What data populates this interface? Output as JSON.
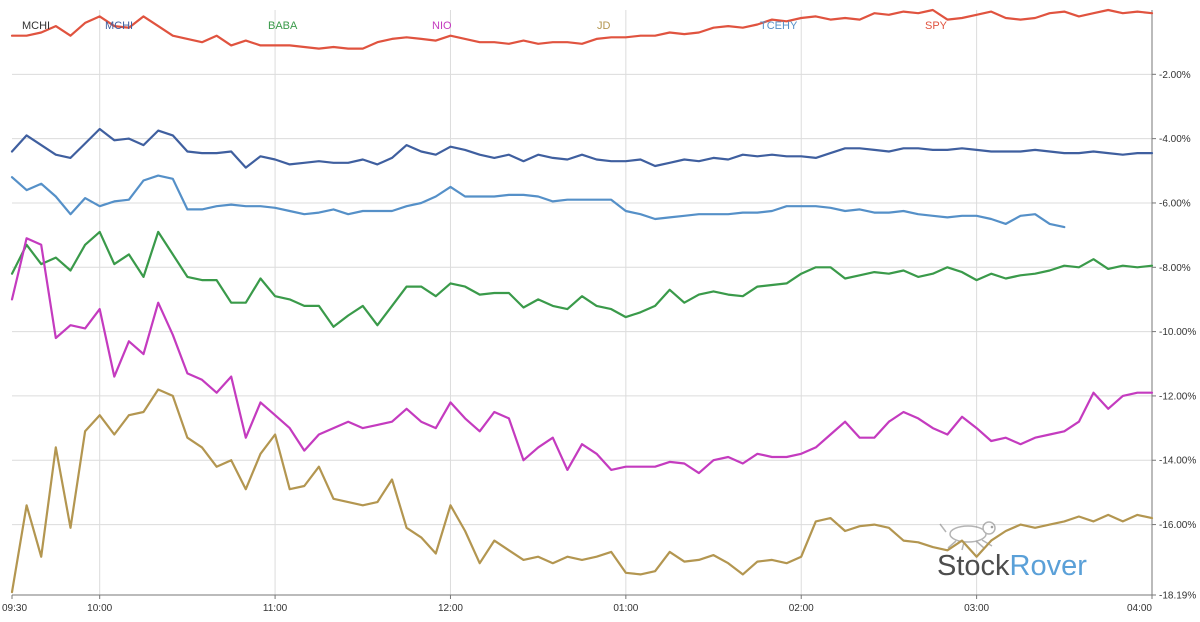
{
  "chart_data": {
    "type": "line",
    "title": "",
    "xlabel": "",
    "ylabel": "",
    "x_tick_labels": [
      "09:30",
      "10:00",
      "11:00",
      "12:00",
      "01:00",
      "02:00",
      "03:00",
      "04:00"
    ],
    "y_tick_labels": [
      "-2.00%",
      "-4.00%",
      "-6.00%",
      "-8.00%",
      "-10.00%",
      "-12.00%",
      "-14.00%",
      "-16.00%",
      "-18.19%"
    ],
    "ylim": [
      -18.19,
      0
    ],
    "x_range_minutes": [
      0,
      390
    ],
    "grid": true,
    "legend_position": "top",
    "watermark": {
      "part1": "Stock",
      "part2": "Rover",
      "color1": "#4d4d4d",
      "color2": "#5aa0d8"
    },
    "series": [
      {
        "name": "SPY",
        "color": "#e0533f",
        "x": [
          0,
          5,
          10,
          15,
          20,
          25,
          30,
          35,
          40,
          45,
          50,
          55,
          60,
          65,
          70,
          75,
          80,
          85,
          90,
          95,
          100,
          105,
          110,
          115,
          120,
          125,
          130,
          135,
          140,
          145,
          150,
          155,
          160,
          165,
          170,
          175,
          180,
          185,
          190,
          195,
          200,
          205,
          210,
          215,
          220,
          225,
          230,
          235,
          240,
          245,
          250,
          255,
          260,
          265,
          270,
          275,
          280,
          285,
          290,
          295,
          300,
          305,
          310,
          315,
          320,
          325,
          330,
          335,
          340,
          345,
          350,
          355,
          360,
          365,
          370,
          375,
          380,
          385,
          390
        ],
        "values": [
          -0.8,
          -0.8,
          -0.7,
          -0.5,
          -0.8,
          -0.4,
          -0.2,
          -0.5,
          -0.55,
          -0.2,
          -0.5,
          -0.8,
          -0.9,
          -1.0,
          -0.8,
          -1.1,
          -0.95,
          -1.1,
          -1.1,
          -1.1,
          -1.15,
          -1.2,
          -1.15,
          -1.2,
          -1.2,
          -1.0,
          -0.9,
          -0.85,
          -0.9,
          -0.95,
          -0.8,
          -0.9,
          -1.0,
          -1.0,
          -1.05,
          -0.95,
          -1.05,
          -1.0,
          -1.0,
          -1.05,
          -0.9,
          -0.85,
          -0.85,
          -0.8,
          -0.8,
          -0.7,
          -0.75,
          -0.7,
          -0.55,
          -0.5,
          -0.55,
          -0.45,
          -0.3,
          -0.35,
          -0.25,
          -0.2,
          -0.3,
          -0.25,
          -0.3,
          -0.1,
          -0.15,
          -0.05,
          -0.1,
          -0.0,
          -0.3,
          -0.25,
          -0.15,
          -0.05,
          -0.25,
          -0.3,
          -0.25,
          -0.1,
          -0.05,
          -0.2,
          -0.1,
          -0.0,
          -0.1,
          -0.05,
          -0.1
        ]
      },
      {
        "name": "MCHI",
        "color": "#3f5f9f",
        "x": [
          0,
          5,
          10,
          15,
          20,
          25,
          30,
          35,
          40,
          45,
          50,
          55,
          60,
          65,
          70,
          75,
          80,
          85,
          90,
          95,
          100,
          105,
          110,
          115,
          120,
          125,
          130,
          135,
          140,
          145,
          150,
          155,
          160,
          165,
          170,
          175,
          180,
          185,
          190,
          195,
          200,
          205,
          210,
          215,
          220,
          225,
          230,
          235,
          240,
          245,
          250,
          255,
          260,
          265,
          270,
          275,
          280,
          285,
          290,
          295,
          300,
          305,
          310,
          315,
          320,
          325,
          330,
          335,
          340,
          345,
          350,
          355,
          360,
          365,
          370,
          375,
          380,
          385,
          390
        ],
        "values": [
          -4.4,
          -3.9,
          -4.2,
          -4.5,
          -4.6,
          -4.15,
          -3.7,
          -4.05,
          -4.0,
          -4.2,
          -3.75,
          -3.9,
          -4.4,
          -4.45,
          -4.45,
          -4.4,
          -4.9,
          -4.55,
          -4.65,
          -4.8,
          -4.75,
          -4.7,
          -4.75,
          -4.75,
          -4.65,
          -4.8,
          -4.6,
          -4.2,
          -4.4,
          -4.5,
          -4.25,
          -4.35,
          -4.5,
          -4.6,
          -4.5,
          -4.7,
          -4.5,
          -4.6,
          -4.65,
          -4.5,
          -4.65,
          -4.7,
          -4.7,
          -4.65,
          -4.85,
          -4.75,
          -4.65,
          -4.7,
          -4.6,
          -4.65,
          -4.5,
          -4.55,
          -4.5,
          -4.55,
          -4.55,
          -4.6,
          -4.45,
          -4.3,
          -4.3,
          -4.35,
          -4.4,
          -4.3,
          -4.3,
          -4.35,
          -4.35,
          -4.3,
          -4.35,
          -4.4,
          -4.4,
          -4.4,
          -4.35,
          -4.4,
          -4.45,
          -4.45,
          -4.4,
          -4.45,
          -4.5,
          -4.45,
          -4.45
        ]
      },
      {
        "name": "TCEHY",
        "color": "#5590c8",
        "x": [
          0,
          5,
          10,
          15,
          20,
          25,
          30,
          35,
          40,
          45,
          50,
          55,
          60,
          65,
          70,
          75,
          80,
          85,
          90,
          95,
          100,
          105,
          110,
          115,
          120,
          125,
          130,
          135,
          140,
          145,
          150,
          155,
          160,
          165,
          170,
          175,
          180,
          185,
          190,
          195,
          200,
          205,
          210,
          215,
          220,
          225,
          230,
          235,
          240,
          245,
          250,
          255,
          260,
          265,
          270,
          275,
          280,
          285,
          290,
          295,
          300,
          305,
          310,
          315,
          320,
          325,
          330,
          335,
          340,
          345,
          350,
          355,
          360
        ],
        "values": [
          -5.2,
          -5.6,
          -5.4,
          -5.8,
          -6.35,
          -5.85,
          -6.1,
          -5.95,
          -5.9,
          -5.3,
          -5.15,
          -5.25,
          -6.2,
          -6.2,
          -6.1,
          -6.05,
          -6.1,
          -6.1,
          -6.15,
          -6.25,
          -6.35,
          -6.3,
          -6.2,
          -6.35,
          -6.25,
          -6.25,
          -6.25,
          -6.1,
          -6.0,
          -5.8,
          -5.5,
          -5.8,
          -5.8,
          -5.8,
          -5.75,
          -5.75,
          -5.8,
          -5.95,
          -5.9,
          -5.9,
          -5.9,
          -5.9,
          -6.25,
          -6.35,
          -6.5,
          -6.45,
          -6.4,
          -6.35,
          -6.35,
          -6.35,
          -6.3,
          -6.3,
          -6.25,
          -6.1,
          -6.1,
          -6.1,
          -6.15,
          -6.25,
          -6.2,
          -6.3,
          -6.3,
          -6.25,
          -6.35,
          -6.4,
          -6.45,
          -6.4,
          -6.4,
          -6.5,
          -6.65,
          -6.4,
          -6.35,
          -6.65,
          -6.75
        ]
      },
      {
        "name": "BABA",
        "color": "#3a9a4a",
        "x": [
          0,
          5,
          10,
          15,
          20,
          25,
          30,
          35,
          40,
          45,
          50,
          55,
          60,
          65,
          70,
          75,
          80,
          85,
          90,
          95,
          100,
          105,
          110,
          115,
          120,
          125,
          130,
          135,
          140,
          145,
          150,
          155,
          160,
          165,
          170,
          175,
          180,
          185,
          190,
          195,
          200,
          205,
          210,
          215,
          220,
          225,
          230,
          235,
          240,
          245,
          250,
          255,
          260,
          265,
          270,
          275,
          280,
          285,
          290,
          295,
          300,
          305,
          310,
          315,
          320,
          325,
          330,
          335,
          340,
          345,
          350,
          355,
          360,
          365,
          370,
          375,
          380,
          385,
          390
        ],
        "values": [
          -8.2,
          -7.3,
          -7.9,
          -7.7,
          -8.1,
          -7.3,
          -6.9,
          -7.9,
          -7.6,
          -8.3,
          -6.9,
          -7.6,
          -8.3,
          -8.4,
          -8.4,
          -9.1,
          -9.1,
          -8.35,
          -8.9,
          -9.0,
          -9.2,
          -9.2,
          -9.85,
          -9.5,
          -9.2,
          -9.8,
          -9.2,
          -8.6,
          -8.6,
          -8.9,
          -8.5,
          -8.6,
          -8.85,
          -8.8,
          -8.8,
          -9.25,
          -9.0,
          -9.2,
          -9.3,
          -8.9,
          -9.2,
          -9.3,
          -9.55,
          -9.4,
          -9.2,
          -8.7,
          -9.1,
          -8.85,
          -8.75,
          -8.85,
          -8.9,
          -8.6,
          -8.55,
          -8.5,
          -8.2,
          -8.0,
          -8.0,
          -8.35,
          -8.25,
          -8.15,
          -8.2,
          -8.1,
          -8.3,
          -8.2,
          -8.0,
          -8.15,
          -8.4,
          -8.2,
          -8.35,
          -8.25,
          -8.2,
          -8.1,
          -7.95,
          -8.0,
          -7.75,
          -8.05,
          -7.95,
          -8.0,
          -7.95
        ]
      },
      {
        "name": "NIO",
        "color": "#c43bbf",
        "x": [
          0,
          5,
          10,
          15,
          20,
          25,
          30,
          35,
          40,
          45,
          50,
          55,
          60,
          65,
          70,
          75,
          80,
          85,
          90,
          95,
          100,
          105,
          110,
          115,
          120,
          125,
          130,
          135,
          140,
          145,
          150,
          155,
          160,
          165,
          170,
          175,
          180,
          185,
          190,
          195,
          200,
          205,
          210,
          215,
          220,
          225,
          230,
          235,
          240,
          245,
          250,
          255,
          260,
          265,
          270,
          275,
          280,
          285,
          290,
          295,
          300,
          305,
          310,
          315,
          320,
          325,
          330,
          335,
          340,
          345,
          350,
          355,
          360,
          365,
          370,
          375,
          380,
          385,
          390
        ],
        "values": [
          -9.0,
          -7.1,
          -7.3,
          -10.2,
          -9.8,
          -9.9,
          -9.3,
          -11.4,
          -10.3,
          -10.7,
          -9.1,
          -10.1,
          -11.3,
          -11.5,
          -11.9,
          -11.4,
          -13.3,
          -12.2,
          -12.6,
          -13.0,
          -13.7,
          -13.2,
          -13.0,
          -12.8,
          -13.0,
          -12.9,
          -12.8,
          -12.4,
          -12.8,
          -13.0,
          -12.2,
          -12.7,
          -13.1,
          -12.5,
          -12.7,
          -14.0,
          -13.6,
          -13.3,
          -14.3,
          -13.5,
          -13.8,
          -14.3,
          -14.2,
          -14.2,
          -14.2,
          -14.05,
          -14.1,
          -14.4,
          -14.0,
          -13.9,
          -14.1,
          -13.8,
          -13.9,
          -13.9,
          -13.8,
          -13.6,
          -13.2,
          -12.8,
          -13.3,
          -13.3,
          -12.8,
          -12.5,
          -12.7,
          -13.0,
          -13.2,
          -12.65,
          -13.0,
          -13.4,
          -13.3,
          -13.5,
          -13.3,
          -13.2,
          -13.1,
          -12.8,
          -11.9,
          -12.4,
          -12.0,
          -11.9,
          -11.9
        ]
      },
      {
        "name": "JD",
        "color": "#b39650",
        "x": [
          0,
          5,
          10,
          15,
          20,
          25,
          30,
          35,
          40,
          45,
          50,
          55,
          60,
          65,
          70,
          75,
          80,
          85,
          90,
          95,
          100,
          105,
          110,
          115,
          120,
          125,
          130,
          135,
          140,
          145,
          150,
          155,
          160,
          165,
          170,
          175,
          180,
          185,
          190,
          195,
          200,
          205,
          210,
          215,
          220,
          225,
          230,
          235,
          240,
          245,
          250,
          255,
          260,
          265,
          270,
          275,
          280,
          285,
          290,
          295,
          300,
          305,
          310,
          315,
          320,
          325,
          330,
          335,
          340,
          345,
          350,
          355,
          360,
          365,
          370,
          375,
          380,
          385,
          390
        ],
        "values": [
          -18.1,
          -15.4,
          -17.0,
          -13.6,
          -16.1,
          -13.1,
          -12.6,
          -13.2,
          -12.6,
          -12.5,
          -11.8,
          -12.0,
          -13.3,
          -13.6,
          -14.2,
          -14.0,
          -14.9,
          -13.8,
          -13.2,
          -14.9,
          -14.8,
          -14.2,
          -15.2,
          -15.3,
          -15.4,
          -15.3,
          -14.6,
          -16.1,
          -16.4,
          -16.9,
          -15.4,
          -16.2,
          -17.2,
          -16.5,
          -16.8,
          -17.1,
          -17.0,
          -17.2,
          -17.0,
          -17.1,
          -17.0,
          -16.85,
          -17.5,
          -17.55,
          -17.45,
          -16.85,
          -17.15,
          -17.1,
          -16.95,
          -17.2,
          -17.55,
          -17.15,
          -17.1,
          -17.2,
          -17.0,
          -15.9,
          -15.8,
          -16.2,
          -16.05,
          -16.0,
          -16.1,
          -16.5,
          -16.55,
          -16.7,
          -16.8,
          -16.5,
          -17.0,
          -16.5,
          -16.2,
          -16.0,
          -16.1,
          -16.0,
          -15.9,
          -15.75,
          -15.9,
          -15.7,
          -15.9,
          -15.7,
          -15.8
        ]
      }
    ]
  }
}
